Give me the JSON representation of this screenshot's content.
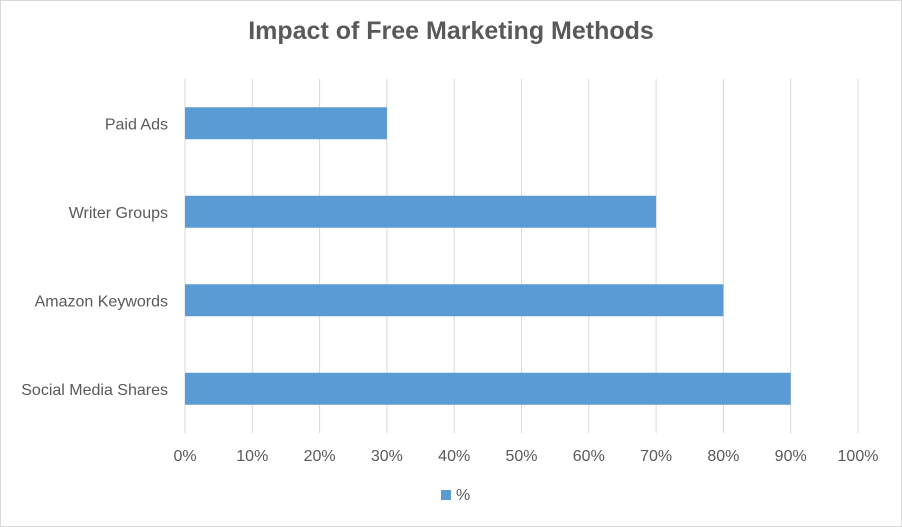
{
  "chart_data": {
    "type": "bar",
    "orientation": "horizontal",
    "title": "Impact of Free Marketing Methods",
    "categories": [
      "Paid Ads",
      "Writer Groups",
      "Amazon Keywords",
      "Social Media Shares"
    ],
    "series": [
      {
        "name": "%",
        "values": [
          30,
          70,
          80,
          90
        ],
        "color": "#5b9bd5"
      }
    ],
    "xticks": [
      "0%",
      "10%",
      "20%",
      "30%",
      "40%",
      "50%",
      "60%",
      "70%",
      "80%",
      "90%",
      "100%"
    ],
    "xlim": [
      0,
      100
    ],
    "grid": true,
    "legend": "bottom",
    "gridline_color": "#d9d9d9"
  }
}
